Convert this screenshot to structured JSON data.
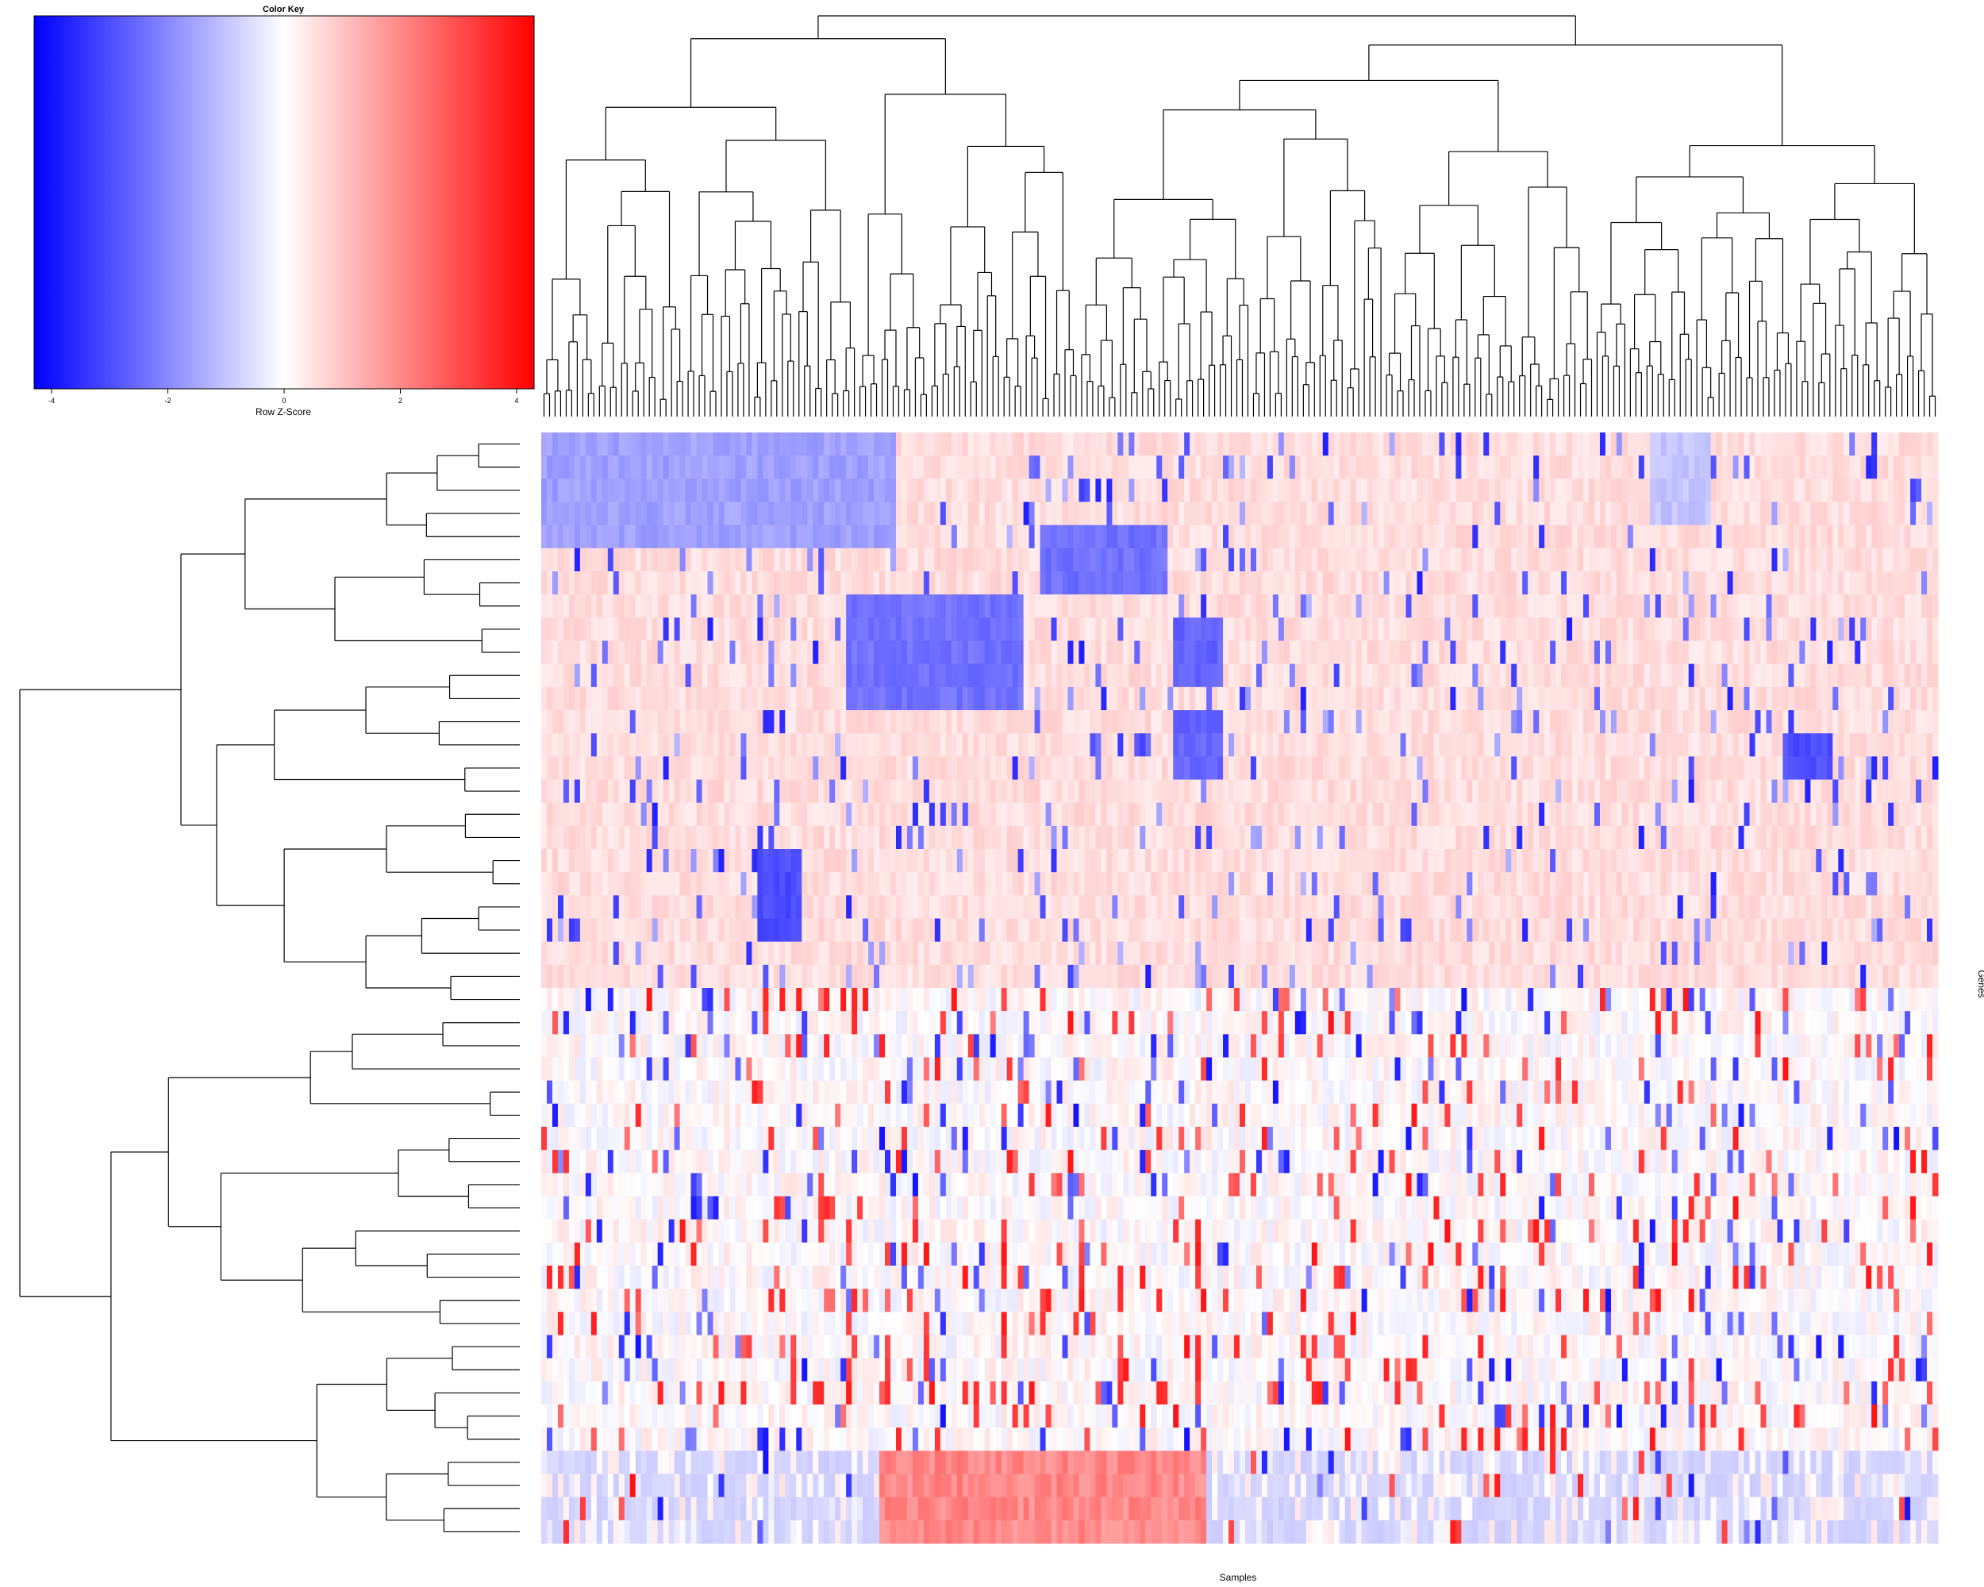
{
  "chart_data": {
    "type": "heatmap",
    "title": "",
    "xlabel": "Samples",
    "ylabel": "Genes",
    "color_key": {
      "title": "Color Key",
      "label": "Row Z-Score",
      "range": [
        -4.3,
        4.3
      ],
      "ticks": [
        -4,
        -2,
        0,
        2,
        4
      ],
      "tick_labels": [
        "-4",
        "-2",
        "0",
        "2",
        "4"
      ],
      "colors": {
        "low": "#0000ff",
        "mid": "#ffffff",
        "high": "#ff0000"
      }
    },
    "rows": 48,
    "columns": 252,
    "row_dendrogram": true,
    "column_dendrogram": true,
    "column_blocks": [
      {
        "range": [
          0,
          63
        ],
        "rows_low": [
          0,
          1,
          2,
          3,
          4
        ],
        "approx_z": -1.6
      },
      {
        "range": [
          55,
          86
        ],
        "rows_low": [
          7,
          8,
          9,
          10,
          11
        ],
        "approx_z": -2.4
      },
      {
        "range": [
          90,
          112
        ],
        "rows_low": [
          4,
          5,
          6
        ],
        "approx_z": -2.4
      },
      {
        "range": [
          39,
          46
        ],
        "rows_low": [
          18,
          19,
          20,
          21
        ],
        "approx_z": -3
      },
      {
        "range": [
          114,
          122
        ],
        "rows_low": [
          8,
          9,
          10,
          12,
          13,
          14
        ],
        "approx_z": -2.6
      },
      {
        "range": [
          224,
          232
        ],
        "rows_low": [
          13,
          14
        ],
        "approx_z": -3
      },
      {
        "range": [
          200,
          210
        ],
        "rows_low": [
          0,
          1,
          2,
          3
        ],
        "approx_z": -1
      }
    ]
  }
}
